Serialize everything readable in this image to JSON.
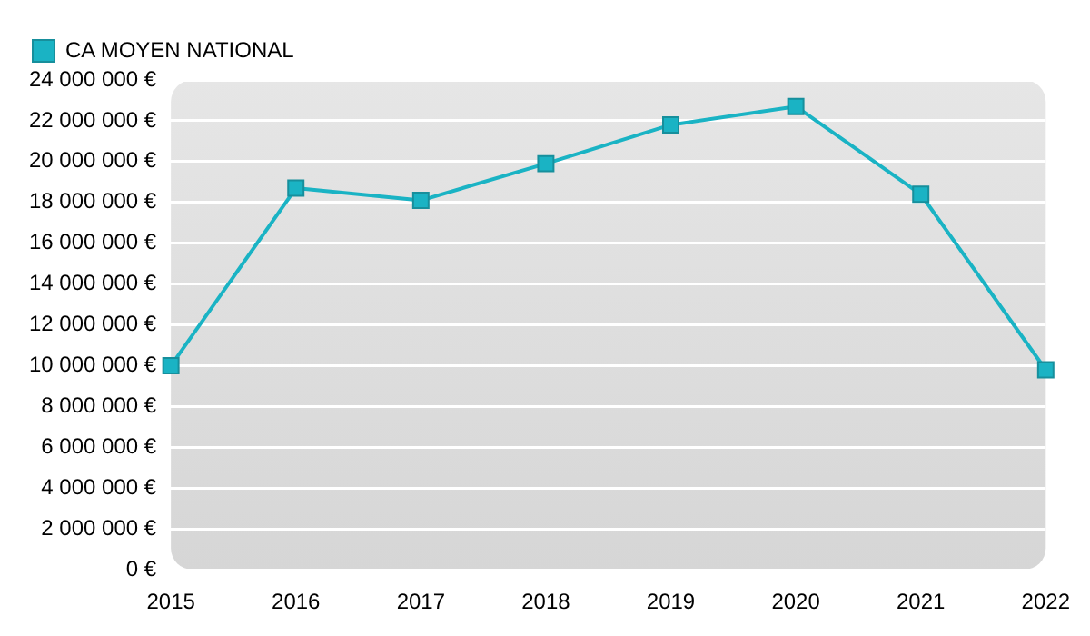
{
  "chart_data": {
    "type": "line",
    "categories": [
      "2015",
      "2016",
      "2017",
      "2018",
      "2019",
      "2020",
      "2021",
      "2022"
    ],
    "series": [
      {
        "name": "CA MOYEN NATIONAL",
        "color": "#1ab3c4",
        "values": [
          10000000,
          18700000,
          18100000,
          19900000,
          21800000,
          22700000,
          18400000,
          9800000
        ]
      }
    ],
    "ylim": [
      0,
      24000000
    ],
    "yticks": [
      {
        "value": 0,
        "label": "0 €"
      },
      {
        "value": 2000000,
        "label": "2 000 000 €"
      },
      {
        "value": 4000000,
        "label": "4 000 000 €"
      },
      {
        "value": 6000000,
        "label": "6 000 000 €"
      },
      {
        "value": 8000000,
        "label": "8 000 000 €"
      },
      {
        "value": 10000000,
        "label": "10 000 000 €"
      },
      {
        "value": 12000000,
        "label": "12 000 000 €"
      },
      {
        "value": 14000000,
        "label": "14 000 000 €"
      },
      {
        "value": 16000000,
        "label": "16 000 000 €"
      },
      {
        "value": 18000000,
        "label": "18 000 000 €"
      },
      {
        "value": 20000000,
        "label": "20 000 000 €"
      },
      {
        "value": 22000000,
        "label": "22 000 000 €"
      },
      {
        "value": 24000000,
        "label": "24 000 000 €"
      }
    ],
    "grid": "y",
    "legend": "top left",
    "marker": "square",
    "line_style": "solid"
  }
}
